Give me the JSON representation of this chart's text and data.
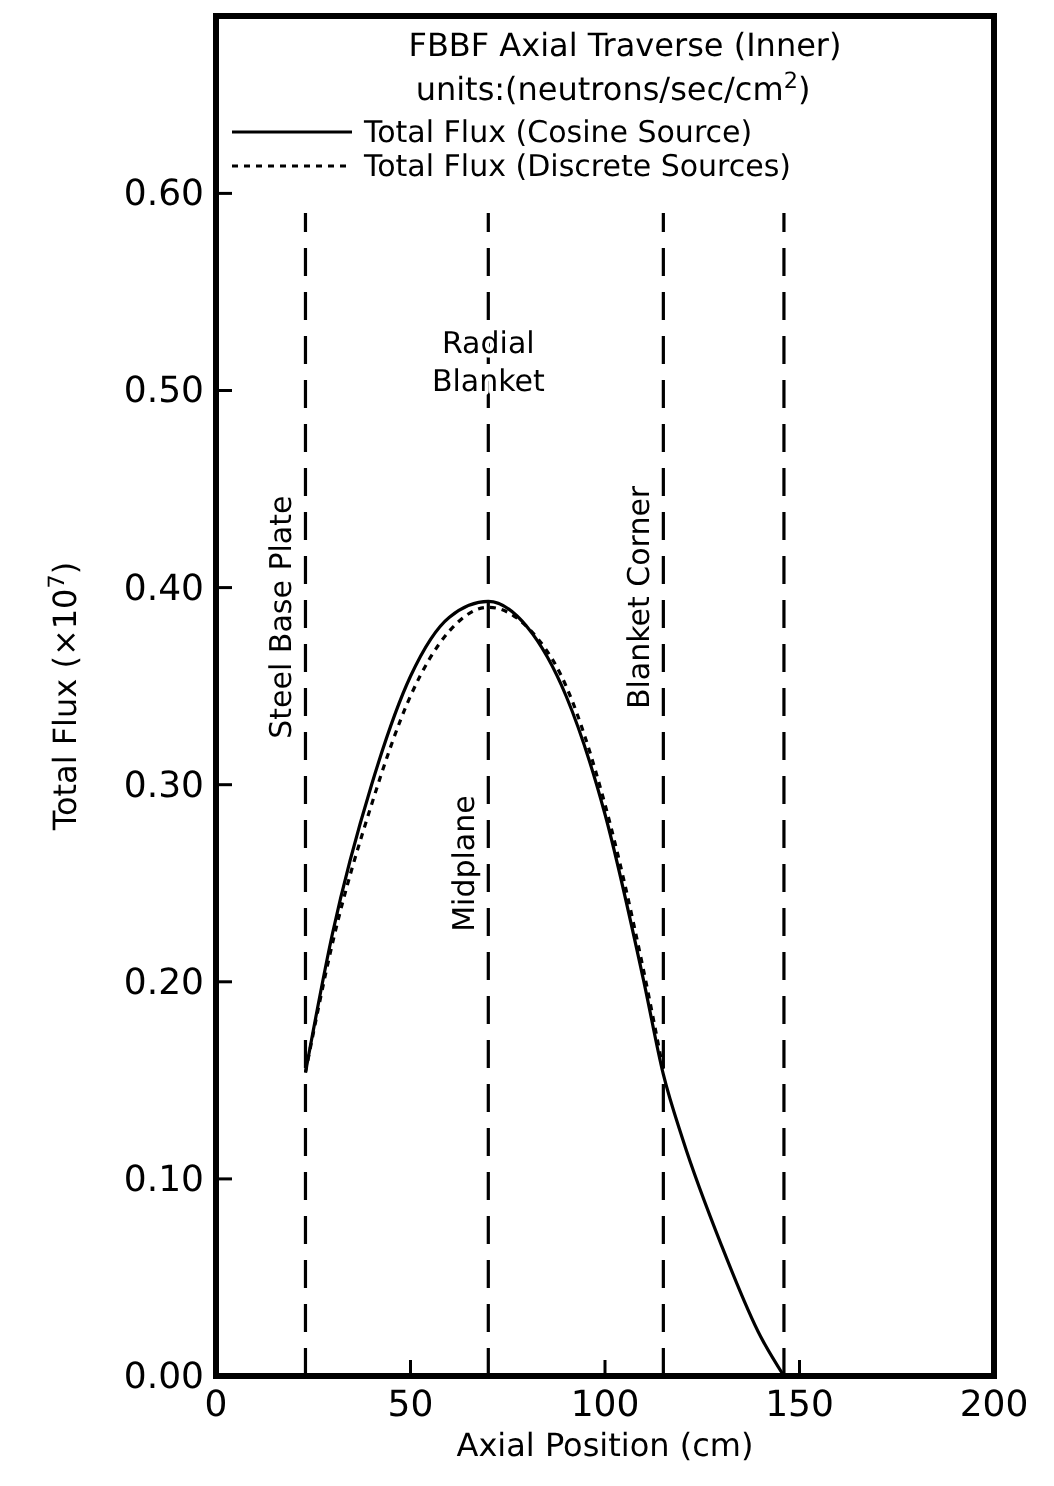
{
  "chart_data": {
    "type": "line",
    "title": "FBBF Axial Traverse (Inner)",
    "subtitle": "units:(neutrons/sec/cm$^{2}$)",
    "xlabel": "Axial Position (cm)",
    "ylabel": "Total Flux (×10$^{7}$)",
    "xlim": [
      0,
      200
    ],
    "xticks": [
      0,
      50,
      100,
      150,
      200
    ],
    "ylim": [
      0,
      0.69
    ],
    "yticks": [
      {
        "value": 0,
        "label": "0.00"
      },
      {
        "value": 0.1,
        "label": "0.10"
      },
      {
        "value": 0.2,
        "label": "0.20"
      },
      {
        "value": 0.3,
        "label": "0.30"
      },
      {
        "value": 0.4,
        "label": "0.40"
      },
      {
        "value": 0.5,
        "label": "0.50"
      },
      {
        "value": 0.6,
        "label": "0.60"
      }
    ],
    "series": [
      {
        "name": "Total Flux (Cosine Source)",
        "color": "#000000",
        "line_style": "solid",
        "x": [
          23,
          30,
          40,
          50,
          60,
          70,
          80,
          90,
          100,
          110,
          115,
          120,
          130,
          140,
          146
        ],
        "values": [
          0.154,
          0.225,
          0.3,
          0.355,
          0.385,
          0.393,
          0.38,
          0.345,
          0.285,
          0.2,
          0.153,
          0.12,
          0.066,
          0.02,
          0
        ]
      },
      {
        "name": "Total Flux (Discrete Sources)",
        "color": "#000000",
        "line_style": "dotted",
        "x": [
          23,
          30,
          40,
          50,
          60,
          70,
          80,
          90,
          100,
          110,
          115
        ],
        "values": [
          0.154,
          0.22,
          0.29,
          0.345,
          0.378,
          0.39,
          0.38,
          0.35,
          0.29,
          0.205,
          0.155
        ]
      }
    ],
    "ref_lines": [
      {
        "axis": "x",
        "value": 23,
        "label": "Steel Base Plate",
        "line_style": "dashed"
      },
      {
        "axis": "x",
        "value": 70,
        "label": "Midplane",
        "line_style": "dashed"
      },
      {
        "axis": "x",
        "value": 115,
        "label": "Blanket Corner",
        "line_style": "dashed"
      },
      {
        "axis": "x",
        "value": 146,
        "label": null,
        "line_style": "dashed"
      }
    ],
    "annotations": [
      {
        "text": "Radial Blanket",
        "x": 70,
        "y": 0.51
      }
    ],
    "legend": "top",
    "grid": false,
    "marker": "none"
  }
}
